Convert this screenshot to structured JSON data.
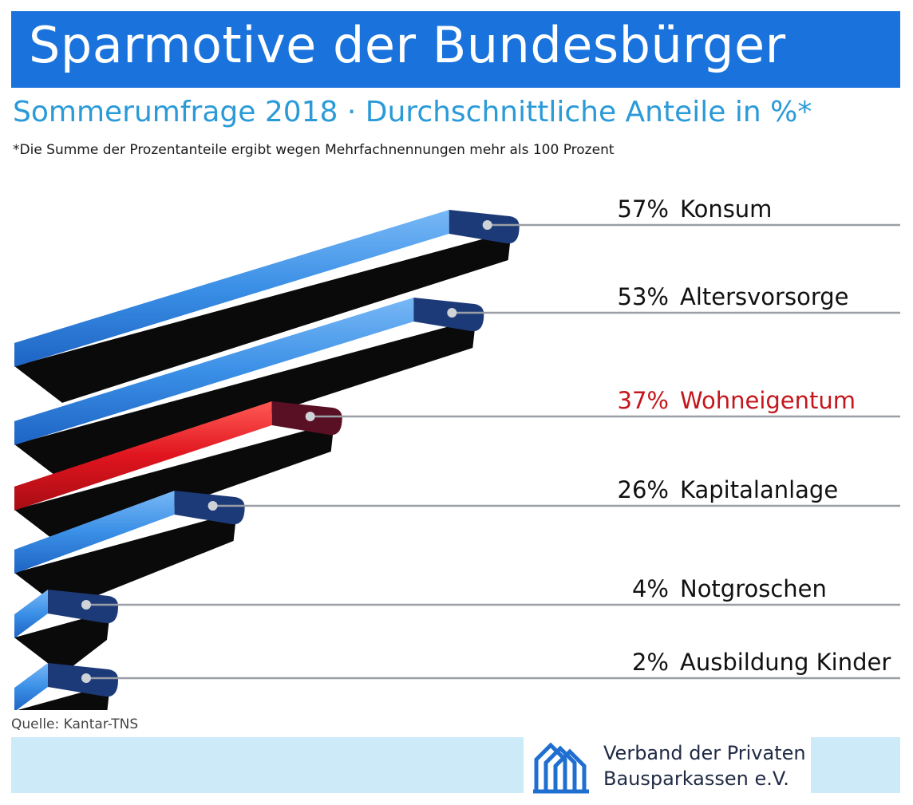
{
  "chart_data": {
    "type": "bar",
    "orientation": "horizontal",
    "title": "Sparmotive der Bundesbürger",
    "subtitle": "Sommerumfrage 2018 · Durchschnittliche Anteile in %*",
    "footnote": "*Die Summe der Prozentanteile ergibt wegen Mehrfachnennungen mehr als 100 Prozent",
    "categories": [
      "Konsum",
      "Altersvorsorge",
      "Wohneigentum",
      "Kapitalanlage",
      "Notgroschen",
      "Ausbildung Kinder"
    ],
    "values": [
      57,
      53,
      37,
      26,
      4,
      2
    ],
    "value_labels": [
      "57%",
      "53%",
      "37%",
      "26%",
      "4%",
      "2%"
    ],
    "highlight": "Wohneigentum",
    "colors": {
      "bar": "#3a8fe6",
      "bar_end": "#1c3a78",
      "highlight_bar": "#e0141e",
      "highlight_end": "#5a1024",
      "highlight_text": "#c4161c",
      "shadow": "#0a0a0a",
      "leader_line": "#9a9ea6"
    },
    "source": "Quelle: Kantar-TNS"
  },
  "footer": {
    "org_line1": "Verband der Privaten",
    "org_line2": "Bausparkassen e.V.",
    "logo_icon": "houses-logo-icon"
  }
}
